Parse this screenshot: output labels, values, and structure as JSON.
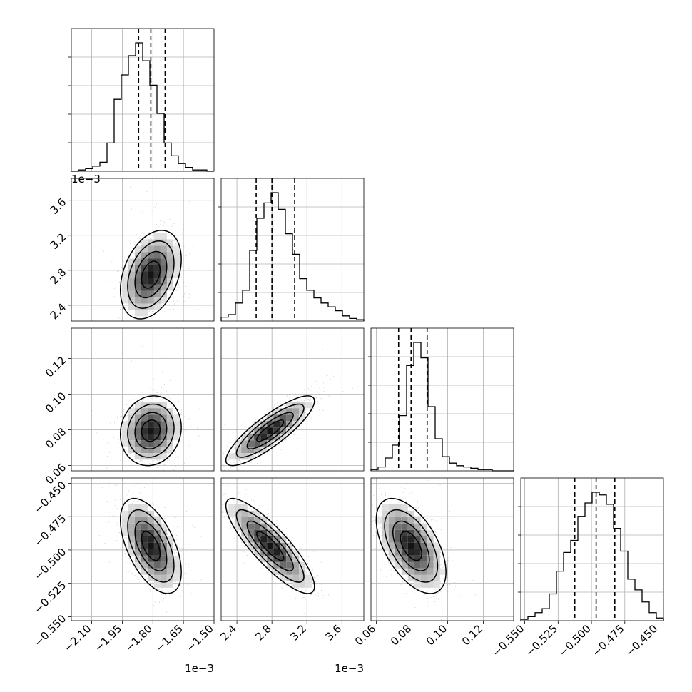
{
  "chart_data": {
    "type": "corner",
    "parameters": [
      {
        "id": "p0",
        "range": [
          -2.2,
          -1.5
        ],
        "offset_label": "1e−3",
        "ticks": [
          -2.1,
          -1.95,
          -1.8,
          -1.65,
          -1.5
        ],
        "tick_labels": [
          "−2.10",
          "−1.95",
          "−1.80",
          "−1.65",
          "−1.50"
        ],
        "quantiles": [
          -1.87,
          -1.81,
          -1.74
        ]
      },
      {
        "id": "p1",
        "range": [
          2.22,
          3.85
        ],
        "offset_label": "1e−3",
        "ticks": [
          2.4,
          2.8,
          3.2,
          3.6
        ],
        "tick_labels": [
          "2.4",
          "2.8",
          "3.2",
          "3.6"
        ],
        "quantiles": [
          2.62,
          2.8,
          3.06
        ]
      },
      {
        "id": "p2",
        "range": [
          0.057,
          0.137
        ],
        "offset_label": "",
        "ticks": [
          0.06,
          0.08,
          0.1,
          0.12
        ],
        "tick_labels": [
          "0.06",
          "0.08",
          "0.10",
          "0.12"
        ],
        "quantiles": [
          0.0725,
          0.0795,
          0.0885
        ]
      },
      {
        "id": "p3",
        "range": [
          -0.553,
          -0.446
        ],
        "offset_label": "",
        "ticks": [
          -0.55,
          -0.525,
          -0.5,
          -0.475,
          -0.45
        ],
        "tick_labels": [
          "−0.550",
          "−0.525",
          "−0.500",
          "−0.475",
          "−0.450"
        ],
        "quantiles": [
          -0.5125,
          -0.4965,
          -0.4825
        ]
      }
    ],
    "histograms": [
      {
        "param": "p0",
        "bins": [
          -2.2,
          -1.5
        ],
        "counts": [
          0,
          1,
          2,
          4,
          7,
          22,
          56,
          75,
          90,
          100,
          86,
          67,
          45,
          22,
          12,
          6,
          3,
          1,
          1,
          0
        ]
      },
      {
        "param": "p1",
        "bins": [
          2.22,
          3.85
        ],
        "counts": [
          3,
          5,
          14,
          24,
          55,
          80,
          92,
          100,
          87,
          68,
          52,
          33,
          24,
          18,
          14,
          11,
          8,
          4,
          2,
          1
        ]
      },
      {
        "param": "p2",
        "bins": [
          0.057,
          0.137
        ],
        "counts": [
          1,
          3,
          10,
          20,
          43,
          82,
          100,
          88,
          50,
          25,
          11,
          6,
          4,
          3,
          2,
          1,
          1,
          0,
          0,
          0
        ]
      },
      {
        "param": "p3",
        "bins": [
          -0.553,
          -0.446
        ],
        "counts": [
          1,
          3,
          6,
          9,
          20,
          37,
          51,
          60,
          78,
          88,
          96,
          94,
          87,
          69,
          52,
          31,
          23,
          14,
          6,
          2
        ]
      }
    ],
    "pairs": [
      {
        "x": "p0",
        "y": "p1",
        "center": [
          -1.81,
          2.75
        ],
        "sd": [
          0.065,
          0.22
        ],
        "rho": 0.35
      },
      {
        "x": "p0",
        "y": "p2",
        "center": [
          -1.81,
          0.0795
        ],
        "sd": [
          0.065,
          0.0085
        ],
        "rho": 0.1
      },
      {
        "x": "p1",
        "y": "p2",
        "center": [
          2.78,
          0.0795
        ],
        "sd": [
          0.22,
          0.0085
        ],
        "rho": 0.85
      },
      {
        "x": "p0",
        "y": "p3",
        "center": [
          -1.81,
          -0.497
        ],
        "sd": [
          0.065,
          0.0155
        ],
        "rho": -0.55
      },
      {
        "x": "p1",
        "y": "p3",
        "center": [
          2.78,
          -0.497
        ],
        "sd": [
          0.22,
          0.0155
        ],
        "rho": -0.85
      },
      {
        "x": "p2",
        "y": "p3",
        "center": [
          0.0795,
          -0.497
        ],
        "sd": [
          0.0085,
          0.0155
        ],
        "rho": -0.55
      }
    ],
    "grid": true,
    "title": "",
    "legend": ""
  }
}
